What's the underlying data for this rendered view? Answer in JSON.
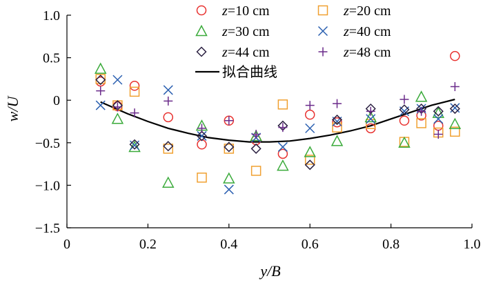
{
  "chart_data": {
    "type": "scatter",
    "title": "",
    "xlabel": "y/B",
    "ylabel": "w/U",
    "xlim": [
      0,
      1.0
    ],
    "ylim": [
      -1.5,
      1.0
    ],
    "xticks": [
      "0",
      "0.2",
      "0.4",
      "0.6",
      "0.8",
      "1.0"
    ],
    "yticks": [
      "1.0",
      "0.5",
      "0",
      "−0.5",
      "−1.0",
      "−1.5"
    ],
    "grid": false,
    "legend_position": "top-right",
    "series": [
      {
        "name": "z=10 cm",
        "marker": "circle",
        "color": "#e8312f",
        "points": [
          [
            0.083,
            0.22
          ],
          [
            0.125,
            -0.07
          ],
          [
            0.167,
            0.17
          ],
          [
            0.25,
            -0.2
          ],
          [
            0.333,
            -0.52
          ],
          [
            0.4,
            -0.24
          ],
          [
            0.467,
            -0.47
          ],
          [
            0.533,
            -0.63
          ],
          [
            0.6,
            -0.17
          ],
          [
            0.667,
            -0.26
          ],
          [
            0.75,
            -0.33
          ],
          [
            0.833,
            -0.24
          ],
          [
            0.875,
            -0.18
          ],
          [
            0.917,
            -0.3
          ],
          [
            0.958,
            0.52
          ]
        ]
      },
      {
        "name": "z=20 cm",
        "marker": "square",
        "color": "#f0a030",
        "points": [
          [
            0.083,
            0.25
          ],
          [
            0.125,
            -0.06
          ],
          [
            0.167,
            0.1
          ],
          [
            0.25,
            -0.57
          ],
          [
            0.333,
            -0.91
          ],
          [
            0.4,
            -0.57
          ],
          [
            0.467,
            -0.83
          ],
          [
            0.533,
            -0.05
          ],
          [
            0.6,
            -0.7
          ],
          [
            0.667,
            -0.32
          ],
          [
            0.75,
            -0.28
          ],
          [
            0.833,
            -0.49
          ],
          [
            0.875,
            -0.27
          ],
          [
            0.917,
            -0.38
          ],
          [
            0.958,
            -0.37
          ]
        ]
      },
      {
        "name": "z=30 cm",
        "marker": "triangle",
        "color": "#3aaa3a",
        "points": [
          [
            0.083,
            0.37
          ],
          [
            0.125,
            -0.22
          ],
          [
            0.167,
            -0.55
          ],
          [
            0.25,
            -0.97
          ],
          [
            0.333,
            -0.3
          ],
          [
            0.4,
            -0.92
          ],
          [
            0.467,
            -0.42
          ],
          [
            0.533,
            -0.77
          ],
          [
            0.6,
            -0.61
          ],
          [
            0.667,
            -0.48
          ],
          [
            0.75,
            -0.2
          ],
          [
            0.833,
            -0.5
          ],
          [
            0.875,
            0.04
          ],
          [
            0.917,
            -0.15
          ],
          [
            0.958,
            -0.28
          ]
        ]
      },
      {
        "name": "z=40 cm",
        "marker": "x",
        "color": "#2a5fb0",
        "points": [
          [
            0.083,
            -0.06
          ],
          [
            0.125,
            0.24
          ],
          [
            0.167,
            -0.53
          ],
          [
            0.25,
            0.12
          ],
          [
            0.333,
            -0.42
          ],
          [
            0.4,
            -1.05
          ],
          [
            0.467,
            -0.44
          ],
          [
            0.533,
            -0.55
          ],
          [
            0.6,
            -0.33
          ],
          [
            0.667,
            -0.25
          ],
          [
            0.75,
            -0.22
          ],
          [
            0.833,
            -0.13
          ],
          [
            0.875,
            -0.1
          ],
          [
            0.917,
            -0.22
          ],
          [
            0.958,
            -0.09
          ]
        ]
      },
      {
        "name": "z=44 cm",
        "marker": "diamond",
        "color": "#2a2040",
        "points": [
          [
            0.083,
            0.24
          ],
          [
            0.125,
            -0.06
          ],
          [
            0.167,
            -0.52
          ],
          [
            0.25,
            -0.54
          ],
          [
            0.333,
            -0.42
          ],
          [
            0.4,
            -0.55
          ],
          [
            0.467,
            -0.57
          ],
          [
            0.533,
            -0.3
          ],
          [
            0.6,
            -0.76
          ],
          [
            0.667,
            -0.23
          ],
          [
            0.75,
            -0.1
          ],
          [
            0.833,
            -0.11
          ],
          [
            0.875,
            -0.1
          ],
          [
            0.917,
            -0.13
          ],
          [
            0.958,
            -0.1
          ]
        ]
      },
      {
        "name": "z=48 cm",
        "marker": "plus",
        "color": "#6a2a8a",
        "points": [
          [
            0.083,
            0.11
          ],
          [
            0.125,
            -0.08
          ],
          [
            0.167,
            -0.15
          ],
          [
            0.25,
            -0.01
          ],
          [
            0.333,
            -0.33
          ],
          [
            0.4,
            -0.24
          ],
          [
            0.467,
            -0.4
          ],
          [
            0.533,
            -0.32
          ],
          [
            0.6,
            -0.06
          ],
          [
            0.667,
            -0.04
          ],
          [
            0.75,
            -0.13
          ],
          [
            0.833,
            0.01
          ],
          [
            0.875,
            -0.13
          ],
          [
            0.917,
            -0.4
          ],
          [
            0.958,
            0.16
          ]
        ]
      }
    ],
    "fit_curve": {
      "name": "拟合曲线",
      "color": "#000000",
      "x": [
        0.083,
        0.15,
        0.2,
        0.25,
        0.3,
        0.35,
        0.4,
        0.45,
        0.5,
        0.55,
        0.6,
        0.65,
        0.7,
        0.75,
        0.8,
        0.85,
        0.9,
        0.958
      ],
      "y": [
        -0.02,
        -0.16,
        -0.25,
        -0.33,
        -0.39,
        -0.44,
        -0.47,
        -0.49,
        -0.49,
        -0.48,
        -0.45,
        -0.41,
        -0.36,
        -0.3,
        -0.22,
        -0.14,
        -0.06,
        0.01
      ]
    }
  }
}
